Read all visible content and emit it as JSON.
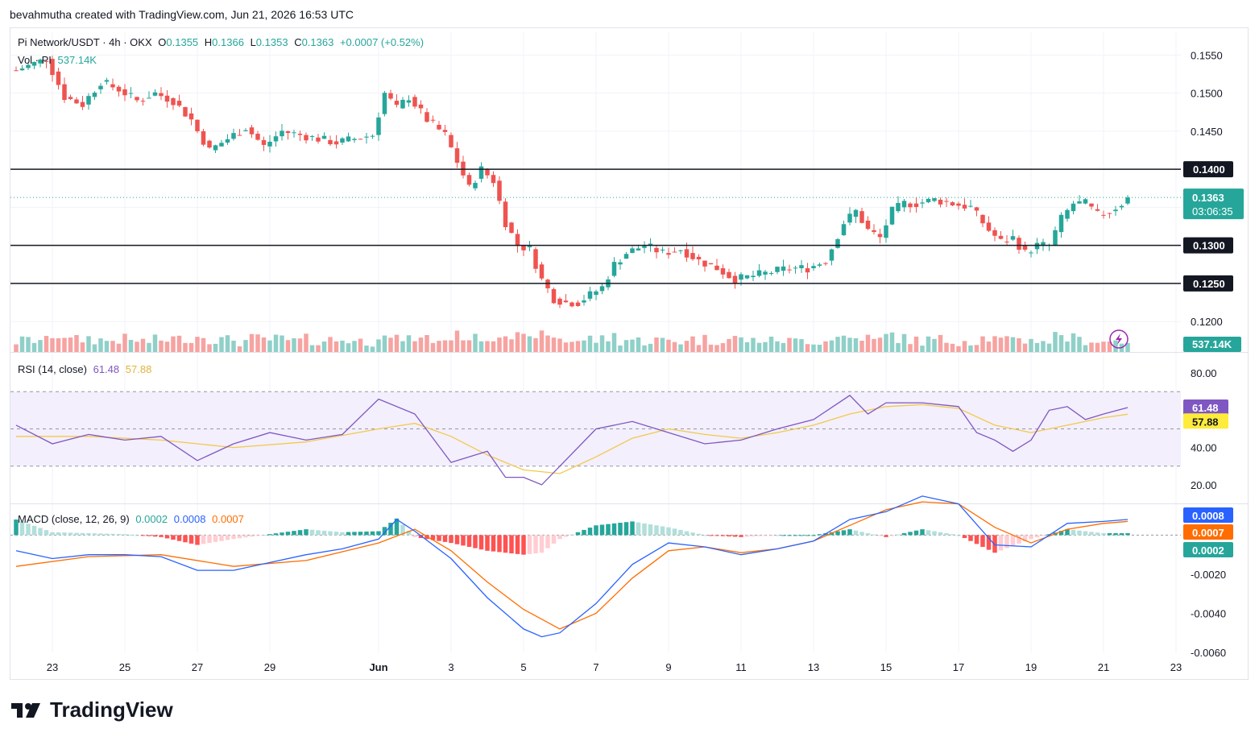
{
  "header": {
    "credit": "bevahmutha created with TradingView.com, Jun 21, 2026 16:53 UTC"
  },
  "brand": {
    "name": "TradingView",
    "icon": "tradingview-logo-icon"
  },
  "colors": {
    "up": "#26a69a",
    "down": "#ef5350",
    "vol_up": "#8fd0c8",
    "vol_down": "#f6a3a1",
    "rsi": "#7e57c2",
    "rsi_ma": "#f2c94c",
    "macd": "#2962ff",
    "signal": "#ff6d00",
    "hline": "#131722"
  },
  "legend": {
    "symbol": "Pi Network/USDT · 4h · OKX",
    "o_label": "O",
    "o_value": "0.1355",
    "h_label": "H",
    "h_value": "0.1366",
    "l_label": "L",
    "l_value": "0.1353",
    "c_label": "C",
    "c_value": "0.1363",
    "change": "+0.0007 (+0.52%)",
    "vol_label": "Vol · PI",
    "vol_value": "537.14K",
    "rsi_label": "RSI (14, close)",
    "rsi_value": "61.48",
    "rsi_ma_value": "57.88",
    "macd_label": "MACD (close, 12, 26, 9)",
    "macd_hist_value": "0.0002",
    "macd_value": "0.0008",
    "signal_value": "0.0007"
  },
  "price_axis": {
    "ticks": [
      "0.1550",
      "0.1500",
      "0.1450",
      "0.1200"
    ],
    "level_badges": [
      "0.1400",
      "0.1300",
      "0.1250"
    ],
    "last_price": "0.1363",
    "countdown": "03:06:35",
    "volume_badge": "537.14K"
  },
  "rsi_axis": {
    "ticks": [
      "80.00",
      "40.00",
      "20.00"
    ],
    "badge_rsi": "61.48",
    "badge_ma": "57.88"
  },
  "macd_axis": {
    "ticks": [
      "-0.0020",
      "-0.0040",
      "-0.0060"
    ],
    "badge_macd": "0.0008",
    "badge_signal": "0.0007",
    "badge_hist": "0.0002"
  },
  "time_axis": [
    "23",
    "25",
    "27",
    "29",
    "Jun",
    "3",
    "5",
    "7",
    "9",
    "11",
    "13",
    "15",
    "17",
    "19",
    "21",
    "23"
  ],
  "chart_data": {
    "type": "candlestick",
    "title": "Pi Network/USDT · 4h · OKX",
    "horizontal_levels": [
      0.14,
      0.13,
      0.125
    ],
    "ylim": [
      0.116,
      0.158
    ],
    "price_path": [
      [
        "May 22 00:00",
        0.153
      ],
      [
        "May 22 20:00",
        0.1545
      ],
      [
        "May 23 08:00",
        0.1495
      ],
      [
        "May 23 20:00",
        0.1485
      ],
      [
        "May 24 08:00",
        0.1515
      ],
      [
        "May 24 20:00",
        0.1505
      ],
      [
        "May 25 08:00",
        0.149
      ],
      [
        "May 25 20:00",
        0.15
      ],
      [
        "May 26 08:00",
        0.149
      ],
      [
        "May 26 20:00",
        0.1465
      ],
      [
        "May 27 00:00",
        0.145
      ],
      [
        "May 27 08:00",
        0.1425
      ],
      [
        "May 27 20:00",
        0.144
      ],
      [
        "May 28 08:00",
        0.1455
      ],
      [
        "May 28 20:00",
        0.143
      ],
      [
        "May 29 08:00",
        0.145
      ],
      [
        "May 29 20:00",
        0.1445
      ],
      [
        "May 30 08:00",
        0.144
      ],
      [
        "May 30 20:00",
        0.1435
      ],
      [
        "May 31 08:00",
        0.144
      ],
      [
        "May 31 20:00",
        0.1445
      ],
      [
        "Jun 1 04:00",
        0.15
      ],
      [
        "Jun 1 12:00",
        0.148
      ],
      [
        "Jun 1 20:00",
        0.1495
      ],
      [
        "Jun 2 08:00",
        0.1465
      ],
      [
        "Jun 2 20:00",
        0.1445
      ],
      [
        "Jun 3 04:00",
        0.141
      ],
      [
        "Jun 3 12:00",
        0.1375
      ],
      [
        "Jun 3 20:00",
        0.14
      ],
      [
        "Jun 4 04:00",
        0.1385
      ],
      [
        "Jun 4 12:00",
        0.133
      ],
      [
        "Jun 4 20:00",
        0.13
      ],
      [
        "Jun 5 04:00",
        0.1295
      ],
      [
        "Jun 5 12:00",
        0.1255
      ],
      [
        "Jun 5 20:00",
        0.123
      ],
      [
        "Jun 6 04:00",
        0.1225
      ],
      [
        "Jun 6 12:00",
        0.1225
      ],
      [
        "Jun 6 20:00",
        0.1235
      ],
      [
        "Jun 7 04:00",
        0.1245
      ],
      [
        "Jun 7 12:00",
        0.1275
      ],
      [
        "Jun 7 20:00",
        0.129
      ],
      [
        "Jun 8 08:00",
        0.13
      ],
      [
        "Jun 8 20:00",
        0.129
      ],
      [
        "Jun 9 08:00",
        0.1295
      ],
      [
        "Jun 9 20:00",
        0.128
      ],
      [
        "Jun 10 08:00",
        0.127
      ],
      [
        "Jun 10 20:00",
        0.1255
      ],
      [
        "Jun 11 08:00",
        0.126
      ],
      [
        "Jun 11 20:00",
        0.1265
      ],
      [
        "Jun 12 08:00",
        0.127
      ],
      [
        "Jun 12 20:00",
        0.127
      ],
      [
        "Jun 13 08:00",
        0.128
      ],
      [
        "Jun 13 20:00",
        0.133
      ],
      [
        "Jun 14 04:00",
        0.1345
      ],
      [
        "Jun 14 12:00",
        0.132
      ],
      [
        "Jun 14 20:00",
        0.131
      ],
      [
        "Jun 15 04:00",
        0.1345
      ],
      [
        "Jun 15 12:00",
        0.1355
      ],
      [
        "Jun 15 20:00",
        0.1355
      ],
      [
        "Jun 16 08:00",
        0.136
      ],
      [
        "Jun 16 20:00",
        0.1355
      ],
      [
        "Jun 17 08:00",
        0.135
      ],
      [
        "Jun 17 20:00",
        0.132
      ],
      [
        "Jun 18 04:00",
        0.1305
      ],
      [
        "Jun 18 12:00",
        0.131
      ],
      [
        "Jun 18 20:00",
        0.129
      ],
      [
        "Jun 19 04:00",
        0.13
      ],
      [
        "Jun 19 12:00",
        0.13
      ],
      [
        "Jun 19 20:00",
        0.1335
      ],
      [
        "Jun 20 04:00",
        0.1355
      ],
      [
        "Jun 20 12:00",
        0.1355
      ],
      [
        "Jun 20 20:00",
        0.134
      ],
      [
        "Jun 21 04:00",
        0.1345
      ],
      [
        "Jun 21 12:00",
        0.1355
      ],
      [
        "Jun 21 16:00",
        0.1363
      ]
    ],
    "last_candle": {
      "open": 0.1355,
      "high": 0.1366,
      "low": 0.1353,
      "close": 0.1363,
      "volume": "537.14K"
    },
    "rsi": {
      "name": "RSI (14, close)",
      "bands": [
        30,
        50,
        70
      ],
      "ylim": [
        10,
        90
      ],
      "series": [
        [
          "May 22",
          52
        ],
        [
          "May 23",
          42
        ],
        [
          "May 24",
          47
        ],
        [
          "May 25",
          44
        ],
        [
          "May 26",
          46
        ],
        [
          "May 27",
          33
        ],
        [
          "May 28",
          42
        ],
        [
          "May 29",
          48
        ],
        [
          "May 30",
          44
        ],
        [
          "May 31",
          47
        ],
        [
          "Jun 1",
          66
        ],
        [
          "Jun 2",
          58
        ],
        [
          "Jun 3",
          32
        ],
        [
          "Jun 4",
          38
        ],
        [
          "Jun 4 12:00",
          24
        ],
        [
          "Jun 5",
          24
        ],
        [
          "Jun 5 12:00",
          20
        ],
        [
          "Jun 6",
          30
        ],
        [
          "Jun 7",
          50
        ],
        [
          "Jun 8",
          54
        ],
        [
          "Jun 9",
          48
        ],
        [
          "Jun 10",
          42
        ],
        [
          "Jun 11",
          44
        ],
        [
          "Jun 12",
          50
        ],
        [
          "Jun 13",
          55
        ],
        [
          "Jun 14",
          68
        ],
        [
          "Jun 14 12:00",
          58
        ],
        [
          "Jun 15",
          64
        ],
        [
          "Jun 16",
          64
        ],
        [
          "Jun 17",
          62
        ],
        [
          "Jun 17 12:00",
          48
        ],
        [
          "Jun 18",
          44
        ],
        [
          "Jun 18 12:00",
          38
        ],
        [
          "Jun 19",
          44
        ],
        [
          "Jun 19 12:00",
          60
        ],
        [
          "Jun 20",
          62
        ],
        [
          "Jun 20 12:00",
          55
        ],
        [
          "Jun 21",
          58
        ],
        [
          "Jun 21 16:00",
          61.48
        ]
      ],
      "ma_series": [
        [
          "May 22",
          46
        ],
        [
          "May 24",
          46
        ],
        [
          "May 26",
          44
        ],
        [
          "May 28",
          40
        ],
        [
          "May 30",
          43
        ],
        [
          "Jun 1",
          50
        ],
        [
          "Jun 2",
          53
        ],
        [
          "Jun 3",
          46
        ],
        [
          "Jun 4",
          36
        ],
        [
          "Jun 5",
          28
        ],
        [
          "Jun 6",
          26
        ],
        [
          "Jun 7",
          35
        ],
        [
          "Jun 8",
          45
        ],
        [
          "Jun 9",
          50
        ],
        [
          "Jun 10",
          47
        ],
        [
          "Jun 11",
          45
        ],
        [
          "Jun 12",
          48
        ],
        [
          "Jun 13",
          52
        ],
        [
          "Jun 14",
          58
        ],
        [
          "Jun 15",
          62
        ],
        [
          "Jun 16",
          63
        ],
        [
          "Jun 17",
          61
        ],
        [
          "Jun 18",
          52
        ],
        [
          "Jun 19",
          48
        ],
        [
          "Jun 20",
          52
        ],
        [
          "Jun 21",
          56
        ],
        [
          "Jun 21 16:00",
          57.88
        ]
      ]
    },
    "macd": {
      "name": "MACD (close, 12, 26, 9)",
      "ylim": [
        -0.006,
        0.0015
      ],
      "macd_series": [
        [
          "May 22",
          -0.0008
        ],
        [
          "May 23",
          -0.0012
        ],
        [
          "May 24",
          -0.001
        ],
        [
          "May 25",
          -0.001
        ],
        [
          "May 26",
          -0.0011
        ],
        [
          "May 27",
          -0.0018
        ],
        [
          "May 28",
          -0.0018
        ],
        [
          "May 29",
          -0.0014
        ],
        [
          "May 30",
          -0.001
        ],
        [
          "May 31",
          -0.0007
        ],
        [
          "Jun 1",
          -0.0002
        ],
        [
          "Jun 1 12:00",
          0.0008
        ],
        [
          "Jun 2",
          0.0002
        ],
        [
          "Jun 3",
          -0.0012
        ],
        [
          "Jun 4",
          -0.0032
        ],
        [
          "Jun 5",
          -0.0048
        ],
        [
          "Jun 5 12:00",
          -0.0052
        ],
        [
          "Jun 6",
          -0.005
        ],
        [
          "Jun 7",
          -0.0035
        ],
        [
          "Jun 8",
          -0.0015
        ],
        [
          "Jun 9",
          -0.0004
        ],
        [
          "Jun 10",
          -0.0006
        ],
        [
          "Jun 11",
          -0.001
        ],
        [
          "Jun 12",
          -0.0007
        ],
        [
          "Jun 13",
          -0.0003
        ],
        [
          "Jun 14",
          0.0008
        ],
        [
          "Jun 15",
          0.0012
        ],
        [
          "Jun 16",
          0.002
        ],
        [
          "Jun 17",
          0.0016
        ],
        [
          "Jun 18",
          -0.0005
        ],
        [
          "Jun 19",
          -0.0006
        ],
        [
          "Jun 20",
          0.0006
        ],
        [
          "Jun 21",
          0.0007
        ],
        [
          "Jun 21 16:00",
          0.0008
        ]
      ],
      "signal_series": [
        [
          "May 22",
          -0.0016
        ],
        [
          "May 24",
          -0.0011
        ],
        [
          "May 26",
          -0.001
        ],
        [
          "May 28",
          -0.0016
        ],
        [
          "May 30",
          -0.0013
        ],
        [
          "Jun 1",
          -0.0004
        ],
        [
          "Jun 2",
          0.0003
        ],
        [
          "Jun 3",
          -0.0008
        ],
        [
          "Jun 4",
          -0.0024
        ],
        [
          "Jun 5",
          -0.0038
        ],
        [
          "Jun 6",
          -0.0048
        ],
        [
          "Jun 7",
          -0.004
        ],
        [
          "Jun 8",
          -0.0022
        ],
        [
          "Jun 9",
          -0.0008
        ],
        [
          "Jun 10",
          -0.0006
        ],
        [
          "Jun 11",
          -0.0009
        ],
        [
          "Jun 12",
          -0.0007
        ],
        [
          "Jun 13",
          -0.0003
        ],
        [
          "Jun 14",
          0.0005
        ],
        [
          "Jun 15",
          0.0013
        ],
        [
          "Jun 16",
          0.0017
        ],
        [
          "Jun 17",
          0.0016
        ],
        [
          "Jun 18",
          0.0004
        ],
        [
          "Jun 19",
          -0.0004
        ],
        [
          "Jun 20",
          0.0003
        ],
        [
          "Jun 21",
          0.0006
        ],
        [
          "Jun 21 16:00",
          0.0007
        ]
      ],
      "last": {
        "histogram": 0.0002,
        "macd": 0.0008,
        "signal": 0.0007
      }
    }
  }
}
